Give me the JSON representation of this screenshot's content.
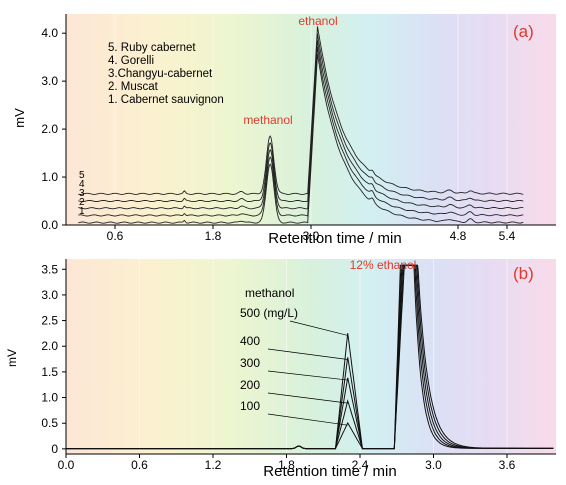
{
  "chart_data": [
    {
      "id": "a",
      "type": "line",
      "panel_label": "(a)",
      "xlabel": "Retention time / min",
      "ylabel": "mV",
      "xlim": [
        0.0,
        6.0
      ],
      "ylim": [
        0.0,
        4.4
      ],
      "x_ticks": [
        0.6,
        1.8,
        3.0,
        4.8,
        5.4
      ],
      "x_tick_labels": [
        "0.6",
        "1.8",
        "3.0",
        "4.8",
        "5.4"
      ],
      "y_ticks": [
        0.0,
        1.0,
        2.0,
        3.0,
        4.0
      ],
      "y_tick_labels": [
        "0.0",
        "1.0",
        "2.0",
        "3.0",
        "4.0"
      ],
      "legend_entries": [
        "5. Ruby cabernet",
        "4. Gorelli",
        "3.Changyu-cabernet",
        "2. Muscat",
        "1. Cabernet sauvignon"
      ],
      "trace_labels": [
        "5",
        "4",
        "3",
        "2",
        "1"
      ],
      "annotations": [
        {
          "text": "methanol",
          "at_x": 2.5
        },
        {
          "text": "ethanol",
          "at_x": 3.0
        }
      ],
      "series": [
        {
          "trace": "1",
          "baseline": 0.05,
          "methanol_peak": 1.28,
          "ethanol_peak": 3.55
        },
        {
          "trace": "2",
          "baseline": 0.2,
          "methanol_peak": 1.42,
          "ethanol_peak": 3.7
        },
        {
          "trace": "3",
          "baseline": 0.35,
          "methanol_peak": 1.56,
          "ethanol_peak": 3.85
        },
        {
          "trace": "4",
          "baseline": 0.5,
          "methanol_peak": 1.7,
          "ethanol_peak": 4.0
        },
        {
          "trace": "5",
          "baseline": 0.65,
          "methanol_peak": 1.85,
          "ethanol_peak": 4.15
        }
      ]
    },
    {
      "id": "b",
      "type": "line",
      "panel_label": "(b)",
      "xlabel": "Retention time / min",
      "ylabel": "mV",
      "xlim": [
        0.0,
        4.0
      ],
      "ylim": [
        -0.1,
        3.7
      ],
      "x_ticks": [
        0.0,
        0.6,
        1.2,
        1.8,
        2.4,
        3.0,
        3.6
      ],
      "x_tick_labels": [
        "0.0",
        "0.6",
        "1.2",
        "1.8",
        "2.4",
        "3.0",
        "3.6"
      ],
      "y_ticks": [
        0,
        0.5,
        1.0,
        1.5,
        2.0,
        2.5,
        3.0,
        3.5
      ],
      "y_tick_labels": [
        "0",
        "0.5",
        "1.0",
        "1.5",
        "2.0",
        "2.5",
        "3.0",
        "3.5"
      ],
      "annotations": [
        {
          "text": "12% ethanol"
        },
        {
          "text": "methanol"
        }
      ],
      "series": [
        {
          "name": "500 (mg/L)",
          "methanol_peak": 2.25
        },
        {
          "name": "400",
          "methanol_peak": 1.78
        },
        {
          "name": "300",
          "methanol_peak": 1.38
        },
        {
          "name": "200",
          "methanol_peak": 0.93
        },
        {
          "name": "100",
          "methanol_peak": 0.5
        }
      ],
      "ethanol_peak": 3.58
    }
  ]
}
